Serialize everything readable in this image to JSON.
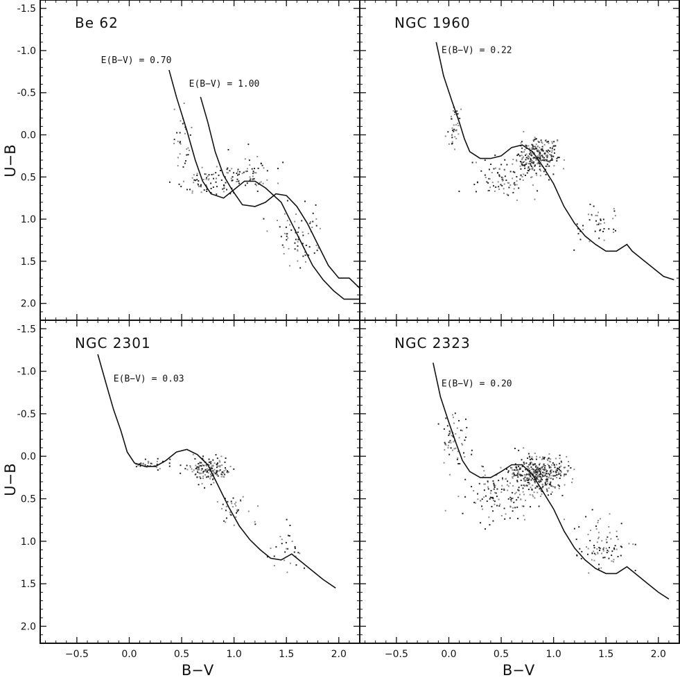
{
  "figure": {
    "ylabel": "U−B",
    "xlabel": "B−V"
  },
  "chart_data": [
    {
      "type": "scatter",
      "title": "Be 62",
      "xlabel": "B−V",
      "ylabel": "U−B",
      "xlim": [
        -0.85,
        2.2
      ],
      "ylim": [
        2.2,
        -1.6
      ],
      "y_inverted": true,
      "xticks": [
        -0.5,
        0.0,
        0.5,
        1.0,
        1.5,
        2.0
      ],
      "yticks": [
        -1.5,
        -1.0,
        -0.5,
        0.0,
        0.5,
        1.0,
        1.5,
        2.0
      ],
      "series": [
        {
          "name": "E(B−V) = 0.70",
          "kind": "line",
          "points": [
            [
              0.38,
              -0.77
            ],
            [
              0.45,
              -0.45
            ],
            [
              0.55,
              -0.05
            ],
            [
              0.63,
              0.3
            ],
            [
              0.7,
              0.55
            ],
            [
              0.78,
              0.7
            ],
            [
              0.9,
              0.75
            ],
            [
              1.0,
              0.65
            ],
            [
              1.1,
              0.55
            ],
            [
              1.2,
              0.55
            ],
            [
              1.3,
              0.63
            ],
            [
              1.45,
              0.8
            ],
            [
              1.55,
              1.05
            ],
            [
              1.65,
              1.3
            ],
            [
              1.75,
              1.55
            ],
            [
              1.85,
              1.72
            ],
            [
              1.95,
              1.85
            ],
            [
              2.05,
              1.95
            ],
            [
              2.2,
              1.95
            ]
          ]
        },
        {
          "name": "E(B−V) = 1.00",
          "kind": "line",
          "points": [
            [
              0.68,
              -0.45
            ],
            [
              0.75,
              -0.15
            ],
            [
              0.82,
              0.2
            ],
            [
              0.9,
              0.48
            ],
            [
              0.98,
              0.65
            ],
            [
              1.08,
              0.83
            ],
            [
              1.2,
              0.85
            ],
            [
              1.3,
              0.8
            ],
            [
              1.4,
              0.7
            ],
            [
              1.5,
              0.72
            ],
            [
              1.6,
              0.85
            ],
            [
              1.7,
              1.05
            ],
            [
              1.8,
              1.3
            ],
            [
              1.9,
              1.55
            ],
            [
              2.0,
              1.7
            ],
            [
              2.1,
              1.7
            ],
            [
              2.2,
              1.82
            ]
          ]
        }
      ],
      "annotations": [
        {
          "text": "E(B−V) = 0.70",
          "x": -0.27,
          "y": -0.85
        },
        {
          "text": "E(B−V) = 1.00",
          "x": 0.57,
          "y": -0.57
        }
      ],
      "scatter": {
        "n": 230,
        "seed": 11,
        "clusters": [
          [
            0.85,
            0.55,
            0.3,
            0.15,
            0.45
          ],
          [
            1.15,
            0.45,
            0.25,
            0.25,
            0.2
          ],
          [
            0.5,
            0.0,
            0.1,
            0.35,
            0.15
          ],
          [
            1.6,
            1.2,
            0.25,
            0.35,
            0.2
          ]
        ]
      }
    },
    {
      "type": "scatter",
      "title": "NGC 1960",
      "xlabel": "B−V",
      "ylabel": "U−B",
      "xlim": [
        -0.85,
        2.2
      ],
      "ylim": [
        2.2,
        -1.6
      ],
      "y_inverted": true,
      "xticks": [
        -0.5,
        0.0,
        0.5,
        1.0,
        1.5,
        2.0
      ],
      "yticks": [
        -1.5,
        -1.0,
        -0.5,
        0.0,
        0.5,
        1.0,
        1.5,
        2.0
      ],
      "series": [
        {
          "name": "E(B−V) = 0.22",
          "kind": "line",
          "points": [
            [
              -0.12,
              -1.1
            ],
            [
              -0.05,
              -0.7
            ],
            [
              0.03,
              -0.4
            ],
            [
              0.1,
              -0.15
            ],
            [
              0.15,
              0.05
            ],
            [
              0.2,
              0.2
            ],
            [
              0.3,
              0.28
            ],
            [
              0.4,
              0.28
            ],
            [
              0.5,
              0.25
            ],
            [
              0.6,
              0.15
            ],
            [
              0.7,
              0.12
            ],
            [
              0.8,
              0.2
            ],
            [
              0.9,
              0.38
            ],
            [
              1.0,
              0.58
            ],
            [
              1.1,
              0.85
            ],
            [
              1.2,
              1.05
            ],
            [
              1.3,
              1.2
            ],
            [
              1.4,
              1.3
            ],
            [
              1.5,
              1.38
            ],
            [
              1.6,
              1.38
            ],
            [
              1.7,
              1.3
            ],
            [
              1.75,
              1.38
            ],
            [
              1.85,
              1.48
            ],
            [
              1.95,
              1.58
            ],
            [
              2.05,
              1.68
            ],
            [
              2.15,
              1.72
            ]
          ]
        }
      ],
      "annotations": [
        {
          "text": "E(B−V) = 0.22",
          "x": -0.07,
          "y": -0.97
        }
      ],
      "scatter": {
        "n": 420,
        "seed": 23,
        "clusters": [
          [
            0.85,
            0.25,
            0.2,
            0.2,
            0.6
          ],
          [
            0.5,
            0.5,
            0.3,
            0.25,
            0.2
          ],
          [
            0.05,
            -0.1,
            0.08,
            0.25,
            0.1
          ],
          [
            1.4,
            1.05,
            0.25,
            0.25,
            0.1
          ]
        ]
      }
    },
    {
      "type": "scatter",
      "title": "NGC 2301",
      "xlabel": "B−V",
      "ylabel": "U−B",
      "xlim": [
        -0.85,
        2.2
      ],
      "ylim": [
        2.2,
        -1.6
      ],
      "y_inverted": true,
      "xticks": [
        -0.5,
        0.0,
        0.5,
        1.0,
        1.5,
        2.0
      ],
      "yticks": [
        -1.5,
        -1.0,
        -0.5,
        0.0,
        0.5,
        1.0,
        1.5,
        2.0
      ],
      "series": [
        {
          "name": "E(B−V) = 0.03",
          "kind": "line",
          "points": [
            [
              -0.3,
              -1.2
            ],
            [
              -0.22,
              -0.85
            ],
            [
              -0.15,
              -0.55
            ],
            [
              -0.08,
              -0.3
            ],
            [
              -0.02,
              -0.05
            ],
            [
              0.05,
              0.08
            ],
            [
              0.15,
              0.12
            ],
            [
              0.25,
              0.12
            ],
            [
              0.35,
              0.05
            ],
            [
              0.45,
              -0.05
            ],
            [
              0.55,
              -0.08
            ],
            [
              0.65,
              -0.02
            ],
            [
              0.75,
              0.1
            ],
            [
              0.85,
              0.35
            ],
            [
              0.95,
              0.6
            ],
            [
              1.05,
              0.82
            ],
            [
              1.15,
              0.98
            ],
            [
              1.25,
              1.1
            ],
            [
              1.35,
              1.2
            ],
            [
              1.45,
              1.22
            ],
            [
              1.55,
              1.15
            ],
            [
              1.65,
              1.25
            ],
            [
              1.75,
              1.35
            ],
            [
              1.85,
              1.45
            ],
            [
              1.97,
              1.55
            ]
          ]
        }
      ],
      "annotations": [
        {
          "text": "E(B−V) = 0.03",
          "x": -0.15,
          "y": -0.88
        }
      ],
      "scatter": {
        "n": 260,
        "seed": 37,
        "clusters": [
          [
            0.75,
            0.15,
            0.2,
            0.15,
            0.65
          ],
          [
            1.0,
            0.6,
            0.2,
            0.25,
            0.15
          ],
          [
            0.2,
            0.1,
            0.15,
            0.05,
            0.1
          ],
          [
            1.5,
            1.1,
            0.2,
            0.3,
            0.1
          ]
        ]
      }
    },
    {
      "type": "scatter",
      "title": "NGC 2323",
      "xlabel": "B−V",
      "ylabel": "U−B",
      "xlim": [
        -0.85,
        2.2
      ],
      "ylim": [
        2.2,
        -1.6
      ],
      "y_inverted": true,
      "xticks": [
        -0.5,
        0.0,
        0.5,
        1.0,
        1.5,
        2.0
      ],
      "yticks": [
        -1.5,
        -1.0,
        -0.5,
        0.0,
        0.5,
        1.0,
        1.5,
        2.0
      ],
      "series": [
        {
          "name": "E(B−V) = 0.20",
          "kind": "line",
          "points": [
            [
              -0.15,
              -1.1
            ],
            [
              -0.08,
              -0.7
            ],
            [
              0.0,
              -0.4
            ],
            [
              0.07,
              -0.15
            ],
            [
              0.13,
              0.05
            ],
            [
              0.2,
              0.18
            ],
            [
              0.3,
              0.25
            ],
            [
              0.4,
              0.25
            ],
            [
              0.5,
              0.18
            ],
            [
              0.6,
              0.1
            ],
            [
              0.7,
              0.1
            ],
            [
              0.8,
              0.22
            ],
            [
              0.9,
              0.42
            ],
            [
              1.0,
              0.62
            ],
            [
              1.1,
              0.88
            ],
            [
              1.2,
              1.08
            ],
            [
              1.3,
              1.22
            ],
            [
              1.4,
              1.32
            ],
            [
              1.5,
              1.38
            ],
            [
              1.6,
              1.38
            ],
            [
              1.7,
              1.3
            ],
            [
              1.78,
              1.38
            ],
            [
              1.9,
              1.5
            ],
            [
              2.0,
              1.6
            ],
            [
              2.1,
              1.68
            ]
          ]
        }
      ],
      "annotations": [
        {
          "text": "E(B−V) = 0.20",
          "x": -0.07,
          "y": -0.82
        }
      ],
      "scatter": {
        "n": 650,
        "seed": 53,
        "clusters": [
          [
            0.85,
            0.2,
            0.25,
            0.22,
            0.6
          ],
          [
            0.45,
            0.45,
            0.35,
            0.3,
            0.2
          ],
          [
            0.05,
            -0.2,
            0.15,
            0.3,
            0.08
          ],
          [
            1.45,
            1.05,
            0.25,
            0.3,
            0.12
          ]
        ]
      }
    }
  ]
}
